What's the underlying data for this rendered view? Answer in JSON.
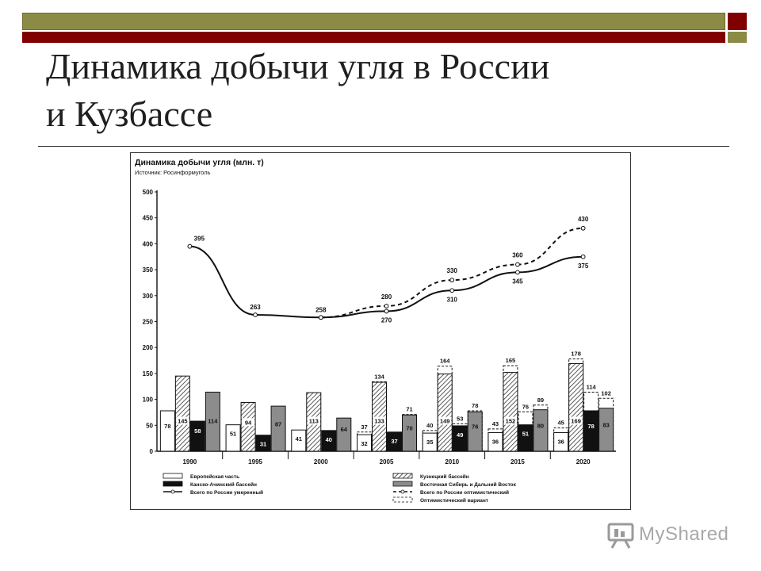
{
  "slide": {
    "title_line1": "Динамика добычи угля в России",
    "title_line2": "и Кузбассе",
    "watermark_text": "MyShared"
  },
  "colors": {
    "olive": "#8b8b45",
    "maroon": "#800000",
    "ink": "#111111"
  },
  "chart_data": {
    "type": "bar",
    "title": "Динамика добычи угля (млн. т)",
    "subtitle": "Источник: Росинформуголь",
    "ylim": [
      0,
      500
    ],
    "yticks": [
      0,
      50,
      100,
      150,
      200,
      250,
      300,
      350,
      400,
      450,
      500
    ],
    "categories": [
      "1990",
      "1995",
      "2000",
      "2005",
      "2010",
      "2015",
      "2020"
    ],
    "bar_series": [
      {
        "name": "Европейская часть",
        "style": "white",
        "values": [
          78,
          51,
          41,
          32,
          35,
          36,
          36
        ],
        "optimistic": [
          null,
          null,
          null,
          37,
          40,
          43,
          45
        ]
      },
      {
        "name": "Кузнецкий бассейн",
        "style": "hatched",
        "values": [
          145,
          94,
          113,
          133,
          149,
          152,
          169
        ],
        "optimistic": [
          null,
          null,
          null,
          134,
          164,
          165,
          178
        ]
      },
      {
        "name": "Канско-Ачинский бассейн",
        "style": "black",
        "values": [
          58,
          31,
          40,
          37,
          49,
          51,
          78
        ],
        "optimistic": [
          null,
          null,
          null,
          null,
          53,
          76,
          114
        ]
      },
      {
        "name": "Восточная Сибирь и Дальний Восток",
        "style": "gray",
        "values": [
          114,
          87,
          64,
          70,
          76,
          80,
          83
        ],
        "optimistic": [
          null,
          null,
          null,
          71,
          78,
          89,
          102
        ]
      }
    ],
    "line_series": [
      {
        "name": "Всего по России умеренный",
        "style": "solid",
        "values": [
          395,
          263,
          258,
          270,
          310,
          345,
          375
        ]
      },
      {
        "name": "Всего по России оптимистический",
        "style": "dashed",
        "values": [
          null,
          null,
          258,
          280,
          330,
          360,
          430
        ]
      }
    ],
    "legend": {
      "placement": "bottom",
      "items": [
        {
          "label": "Европейская часть",
          "marker": "white"
        },
        {
          "label": "Канско-Ачинский бассейн",
          "marker": "black"
        },
        {
          "label": "Всего по России умеренный",
          "marker": "solid-line"
        },
        {
          "label": "Кузнецкий бассейн",
          "marker": "hatched"
        },
        {
          "label": "Восточная Сибирь и Дальний Восток",
          "marker": "gray"
        },
        {
          "label": "Всего по России оптимистический",
          "marker": "dashed-line"
        },
        {
          "label": "Оптимистический вариант",
          "marker": "dashed-box"
        }
      ]
    }
  }
}
